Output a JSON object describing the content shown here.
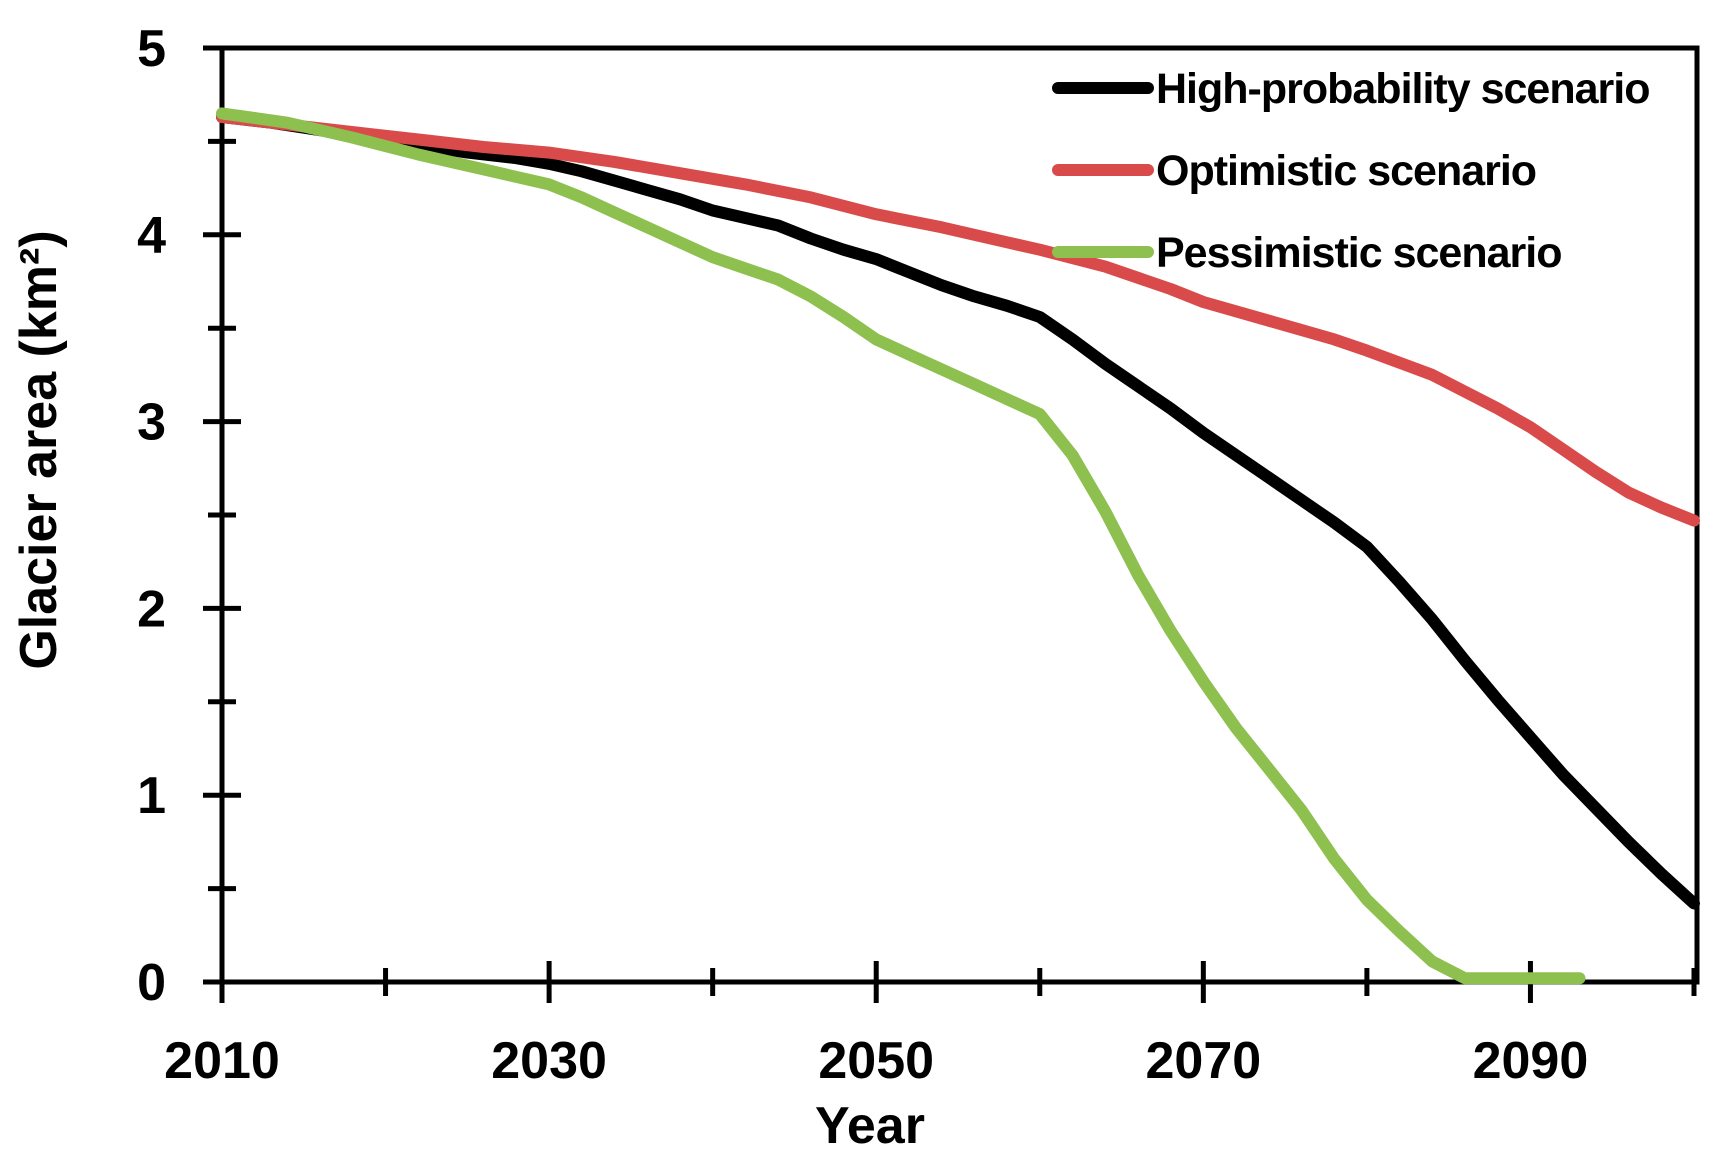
{
  "chart_data": {
    "type": "line",
    "title": "",
    "xlabel": "Year",
    "ylabel": "Glacier area (km²)",
    "xlim": [
      2010,
      2100
    ],
    "ylim": [
      0,
      5
    ],
    "grid": false,
    "legend_position": "top-right-inside",
    "x_major_ticks": [
      2010,
      2030,
      2050,
      2070,
      2090
    ],
    "x_minor_ticks": [
      2020,
      2040,
      2060,
      2080,
      2100
    ],
    "y_major_ticks": [
      0,
      1,
      2,
      3,
      4,
      5
    ],
    "y_minor_ticks": [
      0.5,
      1.5,
      2.5,
      3.5,
      4.5
    ],
    "series": [
      {
        "name": "High-probability scenario",
        "color": "#000000",
        "points": [
          [
            2010,
            4.63
          ],
          [
            2013,
            4.6
          ],
          [
            2016,
            4.56
          ],
          [
            2019,
            4.52
          ],
          [
            2022,
            4.48
          ],
          [
            2025,
            4.44
          ],
          [
            2028,
            4.41
          ],
          [
            2030,
            4.38
          ],
          [
            2032,
            4.34
          ],
          [
            2034,
            4.29
          ],
          [
            2036,
            4.24
          ],
          [
            2038,
            4.19
          ],
          [
            2040,
            4.13
          ],
          [
            2042,
            4.09
          ],
          [
            2044,
            4.05
          ],
          [
            2046,
            3.98
          ],
          [
            2048,
            3.92
          ],
          [
            2050,
            3.87
          ],
          [
            2052,
            3.8
          ],
          [
            2054,
            3.73
          ],
          [
            2056,
            3.67
          ],
          [
            2058,
            3.62
          ],
          [
            2060,
            3.56
          ],
          [
            2062,
            3.44
          ],
          [
            2064,
            3.31
          ],
          [
            2066,
            3.19
          ],
          [
            2068,
            3.07
          ],
          [
            2070,
            2.94
          ],
          [
            2072,
            2.82
          ],
          [
            2074,
            2.7
          ],
          [
            2076,
            2.58
          ],
          [
            2078,
            2.46
          ],
          [
            2080,
            2.33
          ],
          [
            2082,
            2.14
          ],
          [
            2084,
            1.94
          ],
          [
            2086,
            1.72
          ],
          [
            2088,
            1.51
          ],
          [
            2090,
            1.31
          ],
          [
            2092,
            1.11
          ],
          [
            2094,
            0.93
          ],
          [
            2096,
            0.75
          ],
          [
            2098,
            0.58
          ],
          [
            2100,
            0.42
          ]
        ]
      },
      {
        "name": "Optimistic scenario",
        "color": "#d94b4b",
        "points": [
          [
            2010,
            4.63
          ],
          [
            2014,
            4.59
          ],
          [
            2018,
            4.55
          ],
          [
            2022,
            4.51
          ],
          [
            2026,
            4.47
          ],
          [
            2030,
            4.44
          ],
          [
            2034,
            4.39
          ],
          [
            2038,
            4.33
          ],
          [
            2042,
            4.27
          ],
          [
            2046,
            4.2
          ],
          [
            2050,
            4.11
          ],
          [
            2054,
            4.04
          ],
          [
            2058,
            3.96
          ],
          [
            2060,
            3.92
          ],
          [
            2064,
            3.83
          ],
          [
            2068,
            3.71
          ],
          [
            2070,
            3.64
          ],
          [
            2074,
            3.54
          ],
          [
            2078,
            3.44
          ],
          [
            2080,
            3.38
          ],
          [
            2084,
            3.25
          ],
          [
            2086,
            3.16
          ],
          [
            2088,
            3.07
          ],
          [
            2090,
            2.97
          ],
          [
            2092,
            2.85
          ],
          [
            2094,
            2.73
          ],
          [
            2096,
            2.62
          ],
          [
            2098,
            2.54
          ],
          [
            2100,
            2.47
          ]
        ]
      },
      {
        "name": "Pessimistic scenario",
        "color": "#8dc04f",
        "points": [
          [
            2010,
            4.65
          ],
          [
            2014,
            4.6
          ],
          [
            2018,
            4.52
          ],
          [
            2022,
            4.43
          ],
          [
            2026,
            4.35
          ],
          [
            2030,
            4.27
          ],
          [
            2032,
            4.2
          ],
          [
            2034,
            4.12
          ],
          [
            2036,
            4.04
          ],
          [
            2038,
            3.96
          ],
          [
            2040,
            3.88
          ],
          [
            2042,
            3.82
          ],
          [
            2044,
            3.76
          ],
          [
            2046,
            3.67
          ],
          [
            2048,
            3.56
          ],
          [
            2050,
            3.44
          ],
          [
            2052,
            3.36
          ],
          [
            2054,
            3.28
          ],
          [
            2056,
            3.2
          ],
          [
            2058,
            3.12
          ],
          [
            2060,
            3.04
          ],
          [
            2062,
            2.82
          ],
          [
            2064,
            2.52
          ],
          [
            2066,
            2.18
          ],
          [
            2068,
            1.88
          ],
          [
            2070,
            1.61
          ],
          [
            2072,
            1.36
          ],
          [
            2074,
            1.14
          ],
          [
            2076,
            0.92
          ],
          [
            2078,
            0.66
          ],
          [
            2080,
            0.44
          ],
          [
            2082,
            0.27
          ],
          [
            2084,
            0.11
          ],
          [
            2086,
            0.02
          ],
          [
            2090,
            0.02
          ],
          [
            2093,
            0.02
          ]
        ]
      }
    ]
  },
  "legend": {
    "items": [
      {
        "label": "High-probability scenario"
      },
      {
        "label": "Optimistic scenario"
      },
      {
        "label": "Pessimistic scenario"
      }
    ]
  }
}
